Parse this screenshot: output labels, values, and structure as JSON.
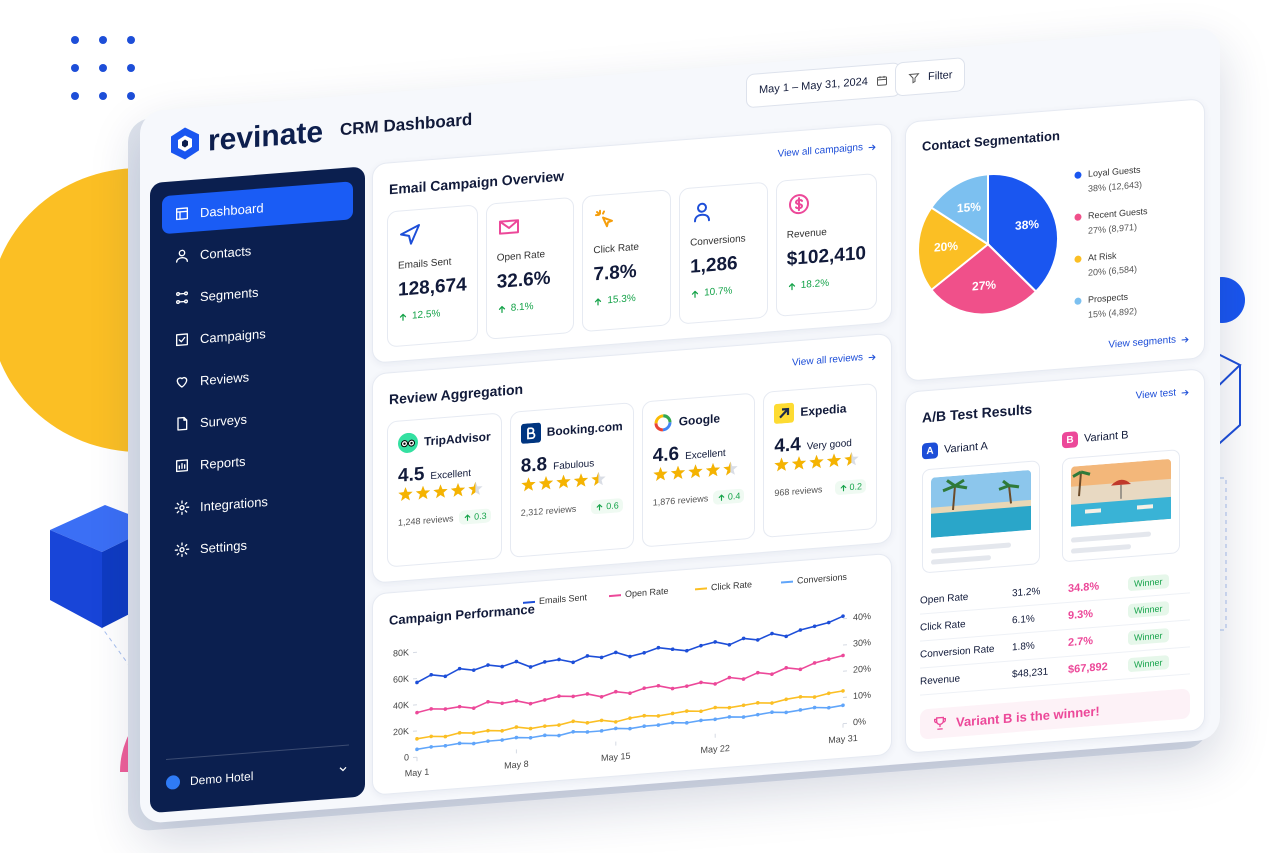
{
  "brand": "revinate",
  "header": {
    "title": "CRM Dashboard",
    "date_range": "May 1 – May 31, 2024",
    "filter": "Filter"
  },
  "nav": [
    "Dashboard",
    "Contacts",
    "Segments",
    "Campaigns",
    "Reviews",
    "Surveys",
    "Reports",
    "Integrations",
    "Settings"
  ],
  "account": "Demo Hotel",
  "email_overview": {
    "title": "Email Campaign Overview",
    "link": "View all campaigns",
    "metrics": [
      {
        "label": "Emails Sent",
        "value": "128,674",
        "change": "12.5%"
      },
      {
        "label": "Open Rate",
        "value": "32.6%",
        "change": "8.1%"
      },
      {
        "label": "Click Rate",
        "value": "7.8%",
        "change": "15.3%"
      },
      {
        "label": "Conversions",
        "value": "1,286",
        "change": "10.7%"
      },
      {
        "label": "Revenue",
        "value": "$102,410",
        "change": "18.2%"
      }
    ]
  },
  "review_aggregation": {
    "title": "Review Aggregation",
    "link": "View all reviews",
    "sources": [
      {
        "name": "TripAdvisor",
        "score": "4.5",
        "rating": "Excellent",
        "stars": 4.5,
        "reviews": "1,248 reviews",
        "change": "0.3"
      },
      {
        "name": "Booking.com",
        "score": "8.8",
        "rating": "Fabulous",
        "stars": 4.5,
        "reviews": "2,312 reviews",
        "change": "0.6"
      },
      {
        "name": "Google",
        "score": "4.6",
        "rating": "Excellent",
        "stars": 4.5,
        "reviews": "1,876 reviews",
        "change": "0.4"
      },
      {
        "name": "Expedia",
        "score": "4.4",
        "rating": "Very good",
        "stars": 4.5,
        "reviews": "968 reviews",
        "change": "0.2"
      }
    ]
  },
  "segmentation_link": "View segments",
  "ab_test": {
    "title": "A/B Test Results",
    "link": "View test",
    "badges": [
      "A",
      "B"
    ],
    "variants": [
      "Variant A",
      "Variant B"
    ],
    "rows": [
      [
        "Open Rate",
        "31.2%",
        "34.8%",
        "Winner"
      ],
      [
        "Click Rate",
        "6.1%",
        "9.3%",
        "Winner"
      ],
      [
        "Conversion Rate",
        "1.8%",
        "2.7%",
        "Winner"
      ],
      [
        "Revenue",
        "$48,231",
        "$67,892",
        "Winner"
      ]
    ],
    "result": "Variant B is the winner!"
  },
  "chart_data": [
    {
      "type": "pie",
      "title": "Contact Segmentation",
      "categories": [
        "Loyal Guests",
        "Recent Guests",
        "At Risk",
        "Prospects"
      ],
      "values": [
        38,
        27,
        20,
        15
      ],
      "value_labels": [
        "38%",
        "27%",
        "20%",
        "15%"
      ],
      "details": [
        "38% (12,643)",
        "27% (8,971)",
        "20% (6,584)",
        "15% (4,892)"
      ],
      "colors": [
        "#1a56f0",
        "#f0508a",
        "#fbbf24",
        "#7cc0f0"
      ]
    },
    {
      "type": "line",
      "title": "Campaign Performance",
      "x": [
        1,
        2,
        3,
        4,
        5,
        6,
        7,
        8,
        9,
        10,
        11,
        12,
        13,
        14,
        15,
        16,
        17,
        18,
        19,
        20,
        21,
        22,
        23,
        24,
        25,
        26,
        27,
        28,
        29,
        30,
        31
      ],
      "xlim": [
        1,
        31
      ],
      "xticks": [
        {
          "value": 1,
          "label": "May 1"
        },
        {
          "value": 8,
          "label": "May 8"
        },
        {
          "value": 15,
          "label": "May 15"
        },
        {
          "value": 22,
          "label": "May 22"
        },
        {
          "value": 31,
          "label": "May 31"
        }
      ],
      "ylim": [
        0,
        90000
      ],
      "yticks": [
        0,
        {
          "value": 20000,
          "label": "20K"
        },
        {
          "value": 40000,
          "label": "40K"
        },
        {
          "value": 60000,
          "label": "60K"
        },
        {
          "value": 80000,
          "label": "80K"
        }
      ],
      "y2lim": [
        0,
        45
      ],
      "y2ticks": [
        {
          "value": 0,
          "label": "0%"
        },
        {
          "value": 10,
          "label": "10%"
        },
        {
          "value": 20,
          "label": "20%"
        },
        {
          "value": 30,
          "label": "30%"
        },
        {
          "value": 40,
          "label": "40%"
        }
      ],
      "series": [
        {
          "name": "Emails Sent",
          "color": "#1d4ed8",
          "values": [
            57000,
            62000,
            60000,
            65000,
            63000,
            66000,
            64000,
            67000,
            62000,
            65000,
            66000,
            63000,
            67000,
            65000,
            68000,
            64000,
            66000,
            69000,
            67000,
            65000,
            68000,
            70000,
            67000,
            71000,
            69000,
            73000,
            70000,
            74000,
            76000,
            78000,
            82000
          ]
        },
        {
          "name": "Open Rate",
          "color": "#ec4899",
          "axis": "y2",
          "values": [
            17,
            18,
            17.5,
            18,
            17,
            19,
            18,
            18.5,
            17,
            18,
            19,
            18.5,
            19,
            17.5,
            19,
            18,
            19.5,
            20,
            18.5,
            19,
            20,
            19,
            21,
            20,
            22,
            21,
            23,
            22,
            24,
            25,
            26
          ]
        },
        {
          "name": "Click Rate",
          "color": "#fbbf24",
          "axis": "y2",
          "values": [
            7,
            7.5,
            7,
            8,
            7.5,
            8,
            7.5,
            8.5,
            7.5,
            8,
            8,
            9,
            8,
            8.5,
            7.5,
            8.5,
            9,
            8.5,
            9,
            9.5,
            9,
            10,
            9.5,
            10,
            10.5,
            10,
            11,
            11.5,
            11,
            12,
            12.5
          ]
        },
        {
          "name": "Conversions",
          "color": "#60a5fa",
          "axis": "y2",
          "values": [
            3,
            3.5,
            3.5,
            4,
            3.5,
            4,
            4,
            4.5,
            4,
            4.5,
            4,
            5,
            4.5,
            4.5,
            5,
            4.5,
            5,
            5,
            5.5,
            5,
            5.5,
            5.5,
            6,
            5.5,
            6,
            6.5,
            6,
            6.5,
            7,
            6.5,
            7
          ]
        }
      ]
    }
  ]
}
